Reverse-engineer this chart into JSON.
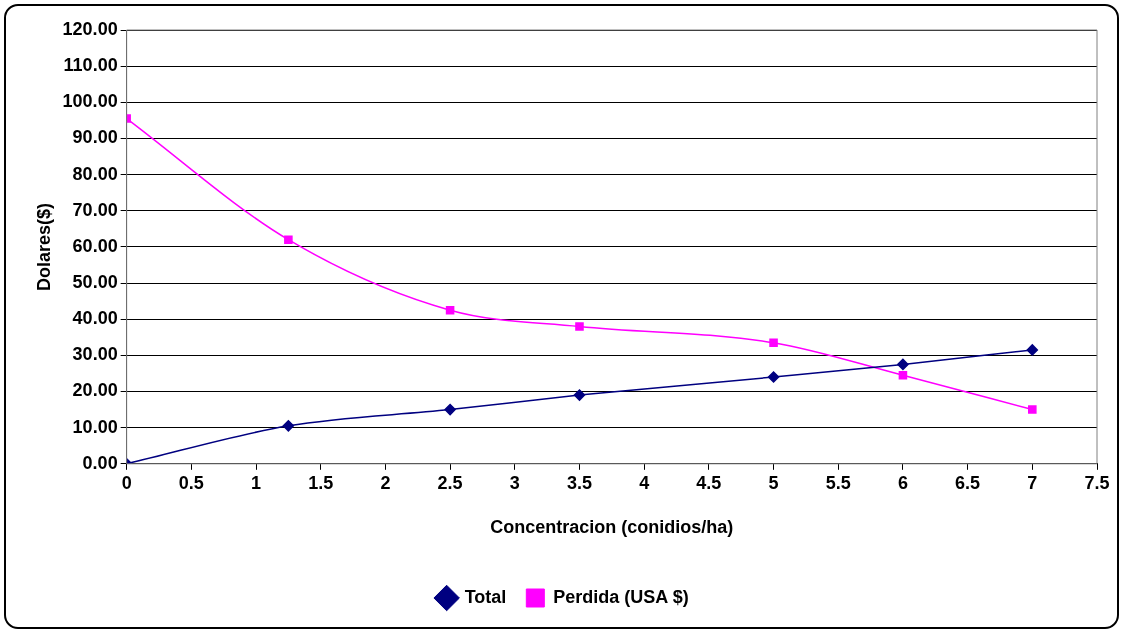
{
  "chart_data": {
    "type": "line",
    "xlabel": "Concentracion (conidios/ha)",
    "ylabel": "Dolares($)",
    "xlim": [
      0,
      7.5
    ],
    "xticks": [
      0,
      0.5,
      1,
      1.5,
      2,
      2.5,
      3,
      3.5,
      4,
      4.5,
      5,
      5.5,
      6,
      6.5,
      7,
      7.5
    ],
    "ylim": [
      0,
      120
    ],
    "yticks": [
      {
        "value": 0,
        "label": "0.00"
      },
      {
        "value": 10,
        "label": "10.00"
      },
      {
        "value": 20,
        "label": "20.00"
      },
      {
        "value": 30,
        "label": "30.00"
      },
      {
        "value": 40,
        "label": "40.00"
      },
      {
        "value": 50,
        "label": "50.00"
      },
      {
        "value": 60,
        "label": "60.00"
      },
      {
        "value": 70,
        "label": "70.00"
      },
      {
        "value": 80,
        "label": "80.00"
      },
      {
        "value": 90,
        "label": "90.00"
      },
      {
        "value": 100,
        "label": "100.00"
      },
      {
        "value": 110,
        "label": "110.00"
      },
      {
        "value": 120,
        "label": "120.00"
      }
    ],
    "x": [
      0,
      1.25,
      2.5,
      3.5,
      5,
      6,
      7
    ],
    "series": [
      {
        "name": "Total",
        "color": "#000080",
        "marker": "diamond",
        "values": [
          0,
          10.5,
          15,
          19,
          24,
          27.5,
          31.5
        ]
      },
      {
        "name": "Perdida (USA $)",
        "color": "#ff00ff",
        "marker": "square",
        "values": [
          95.5,
          62,
          42.5,
          38,
          33.5,
          24.5,
          15
        ]
      }
    ],
    "grid": "y",
    "legend": "bottom"
  }
}
